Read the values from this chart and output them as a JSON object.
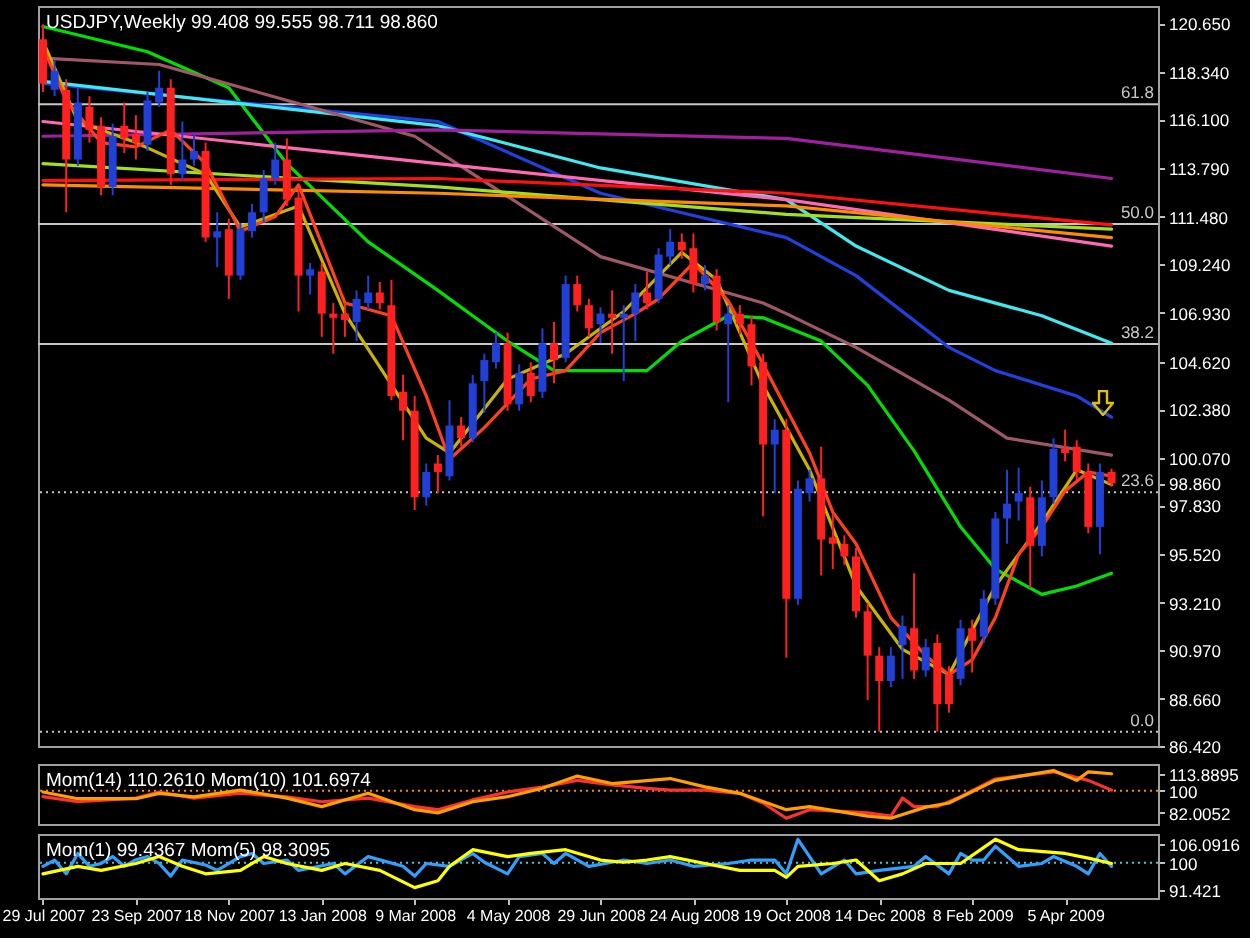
{
  "chart_data": [
    {
      "type": "candlestick",
      "title": "USDJPY,Weekly 99.408 99.555 98.711 98.860",
      "tick_labels": "y",
      "x": [
        "2007-07-29",
        "2007-08-05",
        "2007-08-12",
        "2007-08-19",
        "2007-08-26",
        "2007-09-02",
        "2007-09-09",
        "2007-09-16",
        "2007-09-23",
        "2007-09-30",
        "2007-10-07",
        "2007-10-14",
        "2007-10-21",
        "2007-10-28",
        "2007-11-04",
        "2007-11-11",
        "2007-11-18",
        "2007-11-25",
        "2007-12-02",
        "2007-12-09",
        "2007-12-16",
        "2007-12-23",
        "2007-12-30",
        "2008-01-06",
        "2008-01-13",
        "2008-01-20",
        "2008-01-27",
        "2008-02-03",
        "2008-02-10",
        "2008-02-17",
        "2008-02-24",
        "2008-03-02",
        "2008-03-09",
        "2008-03-16",
        "2008-03-23",
        "2008-03-30",
        "2008-04-06",
        "2008-04-13",
        "2008-04-20",
        "2008-04-27",
        "2008-05-04",
        "2008-05-11",
        "2008-05-18",
        "2008-05-25",
        "2008-06-01",
        "2008-06-08",
        "2008-06-15",
        "2008-06-22",
        "2008-06-29",
        "2008-07-06",
        "2008-07-13",
        "2008-07-20",
        "2008-07-27",
        "2008-08-03",
        "2008-08-10",
        "2008-08-17",
        "2008-08-24",
        "2008-08-31",
        "2008-09-07",
        "2008-09-14",
        "2008-09-21",
        "2008-09-28",
        "2008-10-05",
        "2008-10-12",
        "2008-10-19",
        "2008-10-26",
        "2008-11-02",
        "2008-11-09",
        "2008-11-16",
        "2008-11-23",
        "2008-11-30",
        "2008-12-07",
        "2008-12-14",
        "2008-12-21",
        "2008-12-28",
        "2009-01-04",
        "2009-01-11",
        "2009-01-18",
        "2009-01-25",
        "2009-02-01",
        "2009-02-08",
        "2009-02-15",
        "2009-02-22",
        "2009-03-01",
        "2009-03-08",
        "2009-03-15",
        "2009-03-22",
        "2009-03-29",
        "2009-04-05",
        "2009-04-12",
        "2009-04-19",
        "2009-04-26",
        "2009-05-03"
      ],
      "ohlc": [
        [
          119.9,
          120.6,
          117.4,
          117.8
        ],
        [
          117.5,
          118.9,
          117.2,
          118.4
        ],
        [
          117.5,
          118.0,
          111.7,
          114.2
        ],
        [
          114.2,
          117.6,
          113.9,
          116.9
        ],
        [
          116.7,
          117.2,
          115.0,
          115.6
        ],
        [
          115.8,
          116.2,
          112.5,
          112.9
        ],
        [
          112.9,
          115.9,
          112.5,
          115.3
        ],
        [
          115.8,
          116.9,
          114.5,
          115.2
        ],
        [
          115.4,
          116.3,
          114.2,
          115.0
        ],
        [
          114.9,
          117.4,
          114.6,
          117.0
        ],
        [
          116.9,
          118.4,
          116.7,
          117.6
        ],
        [
          117.6,
          118.0,
          113.0,
          113.5
        ],
        [
          113.5,
          116.0,
          113.2,
          114.2
        ],
        [
          114.2,
          115.4,
          113.9,
          114.6
        ],
        [
          114.6,
          115.0,
          110.3,
          110.5
        ],
        [
          110.5,
          111.7,
          109.1,
          110.8
        ],
        [
          110.9,
          111.4,
          107.6,
          108.7
        ],
        [
          108.7,
          111.2,
          108.5,
          110.9
        ],
        [
          110.8,
          112.1,
          110.5,
          111.7
        ],
        [
          111.7,
          113.7,
          111.2,
          113.3
        ],
        [
          113.3,
          115.0,
          113.0,
          114.2
        ],
        [
          114.2,
          115.2,
          112.0,
          112.3
        ],
        [
          112.4,
          112.8,
          107.0,
          108.7
        ],
        [
          108.7,
          109.3,
          107.8,
          109.0
        ],
        [
          108.9,
          109.3,
          105.8,
          106.9
        ],
        [
          106.9,
          107.4,
          105.0,
          106.7
        ],
        [
          106.9,
          107.4,
          105.8,
          106.6
        ],
        [
          106.5,
          108.0,
          105.6,
          107.6
        ],
        [
          107.4,
          108.7,
          107.1,
          107.9
        ],
        [
          107.9,
          108.4,
          107.1,
          107.4
        ],
        [
          107.3,
          108.5,
          102.8,
          103.0
        ],
        [
          103.2,
          104.0,
          100.9,
          102.3
        ],
        [
          102.3,
          103.0,
          97.6,
          98.2
        ],
        [
          98.2,
          99.8,
          97.8,
          99.4
        ],
        [
          99.8,
          100.2,
          98.4,
          99.4
        ],
        [
          99.2,
          102.8,
          99.0,
          101.6
        ],
        [
          101.6,
          102.0,
          100.6,
          101.0
        ],
        [
          101.0,
          104.0,
          100.8,
          103.6
        ],
        [
          103.7,
          105.0,
          102.2,
          104.7
        ],
        [
          104.6,
          106.0,
          104.3,
          105.5
        ],
        [
          105.5,
          106.0,
          102.3,
          102.6
        ],
        [
          102.6,
          104.5,
          102.3,
          104.1
        ],
        [
          104.1,
          104.6,
          102.7,
          103.0
        ],
        [
          103.2,
          106.2,
          102.9,
          105.5
        ],
        [
          105.5,
          106.5,
          103.6,
          104.7
        ],
        [
          104.8,
          108.7,
          104.6,
          108.3
        ],
        [
          108.3,
          108.7,
          107.0,
          107.3
        ],
        [
          107.3,
          107.6,
          105.8,
          106.2
        ],
        [
          106.4,
          107.2,
          105.5,
          106.9
        ],
        [
          106.9,
          108.0,
          105.0,
          106.7
        ],
        [
          106.7,
          107.3,
          103.7,
          106.9
        ],
        [
          106.9,
          108.3,
          105.6,
          107.9
        ],
        [
          107.9,
          108.9,
          107.1,
          107.4
        ],
        [
          107.6,
          110.0,
          107.4,
          109.7
        ],
        [
          109.6,
          110.9,
          109.2,
          110.3
        ],
        [
          110.3,
          110.7,
          109.5,
          109.9
        ],
        [
          110.0,
          110.7,
          107.9,
          108.3
        ],
        [
          108.3,
          109.2,
          108.0,
          108.7
        ],
        [
          108.7,
          109.0,
          106.1,
          106.5
        ],
        [
          106.4,
          107.3,
          102.7,
          106.9
        ],
        [
          106.9,
          107.3,
          105.9,
          106.4
        ],
        [
          106.4,
          106.8,
          103.5,
          104.4
        ],
        [
          104.6,
          105.0,
          97.3,
          100.7
        ],
        [
          100.7,
          101.9,
          98.4,
          101.4
        ],
        [
          101.4,
          101.9,
          90.6,
          93.4
        ],
        [
          93.4,
          99.0,
          93.1,
          98.6
        ],
        [
          98.4,
          99.5,
          98.0,
          99.1
        ],
        [
          99.1,
          100.6,
          94.5,
          96.2
        ],
        [
          96.3,
          97.4,
          94.8,
          96.0
        ],
        [
          96.0,
          96.4,
          95.0,
          95.4
        ],
        [
          95.4,
          95.8,
          92.5,
          92.8
        ],
        [
          92.8,
          93.2,
          88.6,
          90.7
        ],
        [
          90.7,
          91.1,
          87.1,
          89.5
        ],
        [
          89.5,
          91.1,
          89.2,
          90.7
        ],
        [
          91.2,
          92.6,
          89.6,
          92.1
        ],
        [
          92.0,
          94.6,
          89.6,
          90.0
        ],
        [
          90.0,
          91.5,
          89.7,
          91.1
        ],
        [
          91.3,
          91.7,
          87.1,
          88.4
        ],
        [
          89.8,
          90.2,
          88.0,
          88.4
        ],
        [
          89.6,
          92.4,
          89.3,
          92.0
        ],
        [
          92.0,
          92.4,
          89.9,
          91.4
        ],
        [
          91.6,
          93.8,
          91.3,
          93.4
        ],
        [
          93.4,
          97.5,
          93.1,
          97.2
        ],
        [
          97.2,
          99.5,
          96.0,
          97.9
        ],
        [
          98.0,
          99.6,
          97.1,
          98.4
        ],
        [
          98.2,
          98.7,
          93.9,
          95.9
        ],
        [
          95.9,
          99.0,
          95.4,
          98.2
        ],
        [
          98.2,
          101.0,
          97.9,
          100.5
        ],
        [
          100.5,
          101.4,
          99.9,
          100.3
        ],
        [
          100.6,
          100.9,
          99.0,
          99.4
        ],
        [
          99.4,
          99.8,
          96.5,
          96.8
        ],
        [
          96.8,
          99.8,
          95.5,
          99.4
        ],
        [
          99.408,
          99.555,
          98.711,
          98.86
        ]
      ],
      "colors": [
        "#ff2020",
        "#2040d8",
        "#ff2020",
        "#2040d8",
        "#ff2020",
        "#ff2020",
        "#2040d8",
        "#ff2020",
        "#ff2020",
        "#2040d8",
        "#2040d8",
        "#ff2020",
        "#2040d8",
        "#2040d8",
        "#ff2020",
        "#2040d8",
        "#ff2020",
        "#2040d8",
        "#2040d8",
        "#2040d8",
        "#2040d8",
        "#ff2020",
        "#ff2020",
        "#2040d8",
        "#ff2020",
        "#ff2020",
        "#ff2020",
        "#2040d8",
        "#2040d8",
        "#ff2020",
        "#ff2020",
        "#ff2020",
        "#ff2020",
        "#2040d8",
        "#ff2020",
        "#2040d8",
        "#ff2020",
        "#2040d8",
        "#2040d8",
        "#2040d8",
        "#ff2020",
        "#2040d8",
        "#ff2020",
        "#2040d8",
        "#ff2020",
        "#2040d8",
        "#ff2020",
        "#ff2020",
        "#2040d8",
        "#ff2020",
        "#2040d8",
        "#2040d8",
        "#ff2020",
        "#2040d8",
        "#2040d8",
        "#ff2020",
        "#ff2020",
        "#2040d8",
        "#ff2020",
        "#2040d8",
        "#ff2020",
        "#ff2020",
        "#ff2020",
        "#2040d8",
        "#ff2020",
        "#2040d8",
        "#2040d8",
        "#ff2020",
        "#ff2020",
        "#ff2020",
        "#ff2020",
        "#ff2020",
        "#ff2020",
        "#2040d8",
        "#2040d8",
        "#ff2020",
        "#2040d8",
        "#ff2020",
        "#ff2020",
        "#2040d8",
        "#ff2020",
        "#2040d8",
        "#2040d8",
        "#2040d8",
        "#2040d8",
        "#ff2020",
        "#2040d8",
        "#2040d8",
        "#ff2020",
        "#ff2020",
        "#ff2020",
        "#2040d8",
        "#ff2020"
      ],
      "series": [
        {
          "type": "line",
          "color": "#00e000",
          "x": [
            "2007-07-29",
            "2007-09-30",
            "2007-11-18",
            "2007-12-23",
            "2008-02-10",
            "2008-03-23",
            "2008-04-13",
            "2008-05-04",
            "2008-06-01",
            "2008-07-27",
            "2008-08-17",
            "2008-09-14",
            "2008-10-05",
            "2008-11-09",
            "2008-12-07",
            "2009-01-04",
            "2009-02-01",
            "2009-02-22",
            "2009-03-22",
            "2009-04-12",
            "2009-05-03"
          ],
          "values": [
            120.5,
            119.3,
            117.6,
            114.0,
            110.3,
            108.0,
            106.8,
            105.6,
            104.2,
            104.2,
            105.6,
            106.8,
            106.7,
            105.6,
            103.5,
            100.4,
            96.8,
            94.8,
            93.6,
            94.0,
            94.6
          ]
        },
        {
          "type": "line",
          "color": "#2040e0",
          "x": [
            "2007-07-29",
            "2008-03-23",
            "2008-06-29",
            "2008-10-19",
            "2008-11-30",
            "2009-01-25",
            "2009-02-22",
            "2009-04-12",
            "2009-05-03"
          ],
          "values": [
            117.8,
            116.0,
            112.6,
            110.5,
            108.7,
            105.3,
            104.2,
            103.0,
            102.0
          ]
        },
        {
          "type": "line",
          "color": "#40e8f0",
          "x": [
            "2007-07-29",
            "2008-03-23",
            "2008-06-29",
            "2008-10-19",
            "2008-11-30",
            "2009-01-25",
            "2009-03-22",
            "2009-05-03"
          ],
          "values": [
            117.9,
            115.8,
            113.8,
            112.3,
            110.1,
            108.0,
            106.8,
            105.5
          ]
        },
        {
          "type": "line",
          "color": "#a05868",
          "x": [
            "2007-07-29",
            "2007-10-07",
            "2008-03-09",
            "2008-06-29",
            "2008-10-05",
            "2008-10-19",
            "2008-11-30",
            "2009-01-25",
            "2009-03-01",
            "2009-05-03"
          ],
          "values": [
            119.0,
            118.7,
            115.3,
            109.6,
            107.4,
            106.9,
            105.3,
            102.8,
            101.0,
            100.2
          ]
        },
        {
          "type": "line",
          "color": "#a020a0",
          "x": [
            "2007-07-29",
            "2008-03-23",
            "2008-10-19",
            "2009-05-03"
          ],
          "values": [
            115.3,
            115.6,
            115.2,
            113.3
          ]
        },
        {
          "type": "line",
          "color": "#ff69b4",
          "x": [
            "2007-07-29",
            "2008-03-23",
            "2008-10-19",
            "2009-05-03"
          ],
          "values": [
            116.0,
            114.0,
            112.3,
            110.1
          ]
        },
        {
          "type": "line",
          "color": "#a0e020",
          "x": [
            "2007-07-29",
            "2008-03-23",
            "2008-10-19",
            "2009-05-03"
          ],
          "values": [
            114.0,
            112.9,
            111.6,
            110.9
          ]
        },
        {
          "type": "line",
          "color": "#ff8c00",
          "x": [
            "2007-07-29",
            "2008-03-23",
            "2008-10-19",
            "2009-05-03"
          ],
          "values": [
            113.0,
            112.6,
            112.0,
            110.5
          ]
        },
        {
          "type": "line",
          "color": "#ff1010",
          "x": [
            "2007-07-29",
            "2008-03-23",
            "2008-10-19",
            "2009-05-03"
          ],
          "values": [
            113.2,
            113.3,
            112.6,
            111.1
          ]
        },
        {
          "type": "line",
          "color": "#c8b400",
          "x": [
            "2007-07-29",
            "2007-08-19",
            "2007-09-23",
            "2007-11-04",
            "2007-11-25",
            "2007-12-30",
            "2008-01-27",
            "2008-03-16",
            "2008-03-30",
            "2008-05-04",
            "2008-06-08",
            "2008-07-13",
            "2008-08-17",
            "2008-09-07",
            "2008-10-05",
            "2008-11-02",
            "2008-11-30",
            "2008-12-28",
            "2009-01-25",
            "2009-02-22",
            "2009-03-22",
            "2009-04-12",
            "2009-05-03"
          ],
          "values": [
            119.8,
            116.0,
            115.0,
            113.5,
            111.0,
            112.0,
            106.9,
            101.0,
            100.3,
            103.8,
            105.0,
            107.0,
            109.8,
            108.5,
            103.5,
            99.5,
            94.0,
            91.0,
            89.8,
            94.0,
            97.0,
            99.5,
            98.8
          ]
        },
        {
          "type": "line",
          "color": "#ff4020",
          "x": [
            "2007-07-29",
            "2007-08-12",
            "2007-09-02",
            "2007-09-23",
            "2007-10-14",
            "2007-11-04",
            "2007-11-25",
            "2007-12-16",
            "2007-12-30",
            "2008-01-27",
            "2008-02-24",
            "2008-03-16",
            "2008-03-30",
            "2008-04-20",
            "2008-05-18",
            "2008-06-08",
            "2008-06-29",
            "2008-07-20",
            "2008-08-03",
            "2008-08-24",
            "2008-09-14",
            "2008-10-05",
            "2008-11-02",
            "2008-11-16",
            "2008-11-30",
            "2008-12-21",
            "2009-01-11",
            "2009-01-25",
            "2009-02-08",
            "2009-02-22",
            "2009-03-08",
            "2009-03-22",
            "2009-04-05",
            "2009-04-19",
            "2009-05-03"
          ],
          "values": [
            119.5,
            117.0,
            115.0,
            114.8,
            115.6,
            114.0,
            110.8,
            111.5,
            113.0,
            107.4,
            106.8,
            103.0,
            100.0,
            101.5,
            103.8,
            104.2,
            106.0,
            106.9,
            107.6,
            109.3,
            107.5,
            104.5,
            100.3,
            97.5,
            96.0,
            92.5,
            90.7,
            89.8,
            90.5,
            92.5,
            95.5,
            96.8,
            98.5,
            99.4,
            99.2
          ]
        }
      ],
      "ref_lines": [
        {
          "axis": "y",
          "value": 116.82,
          "color": "#c8c8c8"
        },
        {
          "axis": "y",
          "value": 111.14,
          "color": "#c8c8c8"
        },
        {
          "axis": "y",
          "value": 105.46,
          "color": "#c8c8c8"
        },
        {
          "axis": "y",
          "value": 98.44,
          "color": "#c8c8c8",
          "line_style": "dotted"
        },
        {
          "axis": "y",
          "value": 87.09,
          "color": "#c8c8c8",
          "line_style": "dotted"
        }
      ],
      "annotations": [
        {
          "text": "61.8",
          "x": "2009-05-31",
          "y": 116.82
        },
        {
          "text": "50.0",
          "x": "2009-05-31",
          "y": 111.14
        },
        {
          "text": "38.2",
          "x": "2009-05-31",
          "y": 105.46
        },
        {
          "text": "23.6",
          "x": "2009-05-31",
          "y": 98.44
        },
        {
          "text": "0.0",
          "x": "2009-05-31",
          "y": 87.09
        }
      ],
      "xlim": [
        "2007-07-26",
        "2009-05-31"
      ],
      "ylim": [
        86.42,
        121.47
      ],
      "yticks": [
        {
          "value": 120.65,
          "label": "120.650"
        },
        {
          "value": 118.34,
          "label": "118.340"
        },
        {
          "value": 116.1,
          "label": "116.100"
        },
        {
          "value": 113.79,
          "label": "113.790"
        },
        {
          "value": 111.48,
          "label": "111.480"
        },
        {
          "value": 109.24,
          "label": "109.240"
        },
        {
          "value": 106.93,
          "label": "106.930"
        },
        {
          "value": 104.62,
          "label": "104.620"
        },
        {
          "value": 102.38,
          "label": "102.380"
        },
        {
          "value": 100.07,
          "label": "100.070"
        },
        {
          "value": 98.86,
          "label": "98.860"
        },
        {
          "value": 97.83,
          "label": "97.830"
        },
        {
          "value": 95.52,
          "label": "95.520"
        },
        {
          "value": 93.21,
          "label": "93.210"
        },
        {
          "value": 90.97,
          "label": "90.970"
        },
        {
          "value": 88.66,
          "label": "88.660"
        },
        {
          "value": 86.42,
          "label": "86.420"
        }
      ]
    },
    {
      "type": "line",
      "title": "Mom(14) 110.2610 Mom(10) 101.6974",
      "tick_labels": "y",
      "series": [
        {
          "color": "#ff3030",
          "x": [
            "2007-07-29",
            "2007-08-19",
            "2007-09-23",
            "2007-10-07",
            "2007-10-28",
            "2007-11-25",
            "2007-12-23",
            "2008-01-13",
            "2008-02-10",
            "2008-03-09",
            "2008-03-23",
            "2008-04-13",
            "2008-05-04",
            "2008-05-25",
            "2008-06-15",
            "2008-07-06",
            "2008-07-27",
            "2008-08-10",
            "2008-08-31",
            "2008-09-21",
            "2008-10-05",
            "2008-10-19",
            "2008-11-02",
            "2008-11-16",
            "2008-12-07",
            "2008-12-21",
            "2008-12-28",
            "2009-01-04",
            "2009-01-18",
            "2009-02-01",
            "2009-02-22",
            "2009-03-29",
            "2009-04-19",
            "2009-05-03"
          ],
          "values": [
            95.2,
            91,
            94,
            99,
            94,
            98,
            95,
            91,
            94,
            87,
            84.5,
            92.5,
            99,
            103,
            108.5,
            104.8,
            102,
            100.5,
            100.5,
            97.9,
            90,
            77.5,
            84.5,
            83.5,
            81.9,
            79.2,
            94,
            87,
            87,
            95.2,
            109.6,
            115.5,
            108.5,
            100.5
          ]
        },
        {
          "color": "#ffa000",
          "x": [
            "2007-07-29",
            "2007-08-19",
            "2007-09-23",
            "2007-10-07",
            "2007-10-28",
            "2007-11-25",
            "2007-12-23",
            "2008-01-13",
            "2008-02-10",
            "2008-03-09",
            "2008-03-23",
            "2008-04-13",
            "2008-05-04",
            "2008-05-25",
            "2008-06-15",
            "2008-07-06",
            "2008-08-10",
            "2008-08-31",
            "2008-09-21",
            "2008-10-19",
            "2008-11-02",
            "2008-12-07",
            "2008-12-21",
            "2009-01-11",
            "2009-01-25",
            "2009-02-22",
            "2009-03-29",
            "2009-04-12",
            "2009-04-19",
            "2009-05-03"
          ],
          "values": [
            99,
            93.5,
            93.5,
            97.9,
            95,
            100.5,
            94,
            87,
            97.9,
            84.5,
            81.9,
            91,
            95.2,
            102,
            112,
            105.9,
            110,
            103.2,
            97.9,
            84.5,
            87,
            79.2,
            77.5,
            86.6,
            90,
            108.5,
            116.5,
            108.5,
            115.5,
            113.9
          ]
        }
      ],
      "ref_lines": [
        {
          "axis": "y",
          "value": 100,
          "color": "#ff8c00",
          "line_style": "dotted"
        }
      ],
      "xlim": [
        "2007-07-26",
        "2009-05-31"
      ],
      "ylim": [
        72.8,
        121.9
      ],
      "yticks": [
        82.0052,
        100,
        113.8895
      ]
    },
    {
      "type": "line",
      "title": "Mom(1) 99.4367 Mom(5) 98.3095",
      "series": [
        {
          "color": "#30a0ff",
          "x": [
            "2007-07-29",
            "2007-08-05",
            "2007-08-12",
            "2007-08-19",
            "2007-08-26",
            "2007-09-02",
            "2007-09-09",
            "2007-09-16",
            "2007-09-23",
            "2007-09-30",
            "2007-10-07",
            "2007-10-14",
            "2007-10-21",
            "2007-11-04",
            "2007-11-11",
            "2007-11-25",
            "2007-12-02",
            "2007-12-09",
            "2007-12-23",
            "2007-12-30",
            "2008-01-20",
            "2008-01-27",
            "2008-02-10",
            "2008-03-02",
            "2008-03-09",
            "2008-03-16",
            "2008-03-30",
            "2008-04-13",
            "2008-04-20",
            "2008-05-04",
            "2008-05-11",
            "2008-05-25",
            "2008-06-01",
            "2008-06-08",
            "2008-06-22",
            "2008-07-06",
            "2008-07-13",
            "2008-07-27",
            "2008-08-10",
            "2008-08-24",
            "2008-09-14",
            "2008-09-28",
            "2008-10-12",
            "2008-10-19",
            "2008-10-26",
            "2008-11-09",
            "2008-11-23",
            "2008-11-30",
            "2008-12-14",
            "2009-01-04",
            "2009-01-11",
            "2009-01-25",
            "2009-02-01",
            "2009-02-08",
            "2009-02-15",
            "2009-02-22",
            "2009-03-08",
            "2009-03-22",
            "2009-03-29",
            "2009-04-12",
            "2009-04-19",
            "2009-04-26",
            "2009-05-03"
          ],
          "values": [
            98.9,
            100.9,
            96.5,
            103,
            98.9,
            99.8,
            102,
            98.9,
            101,
            102,
            99.8,
            95.8,
            100.9,
            99.3,
            97.6,
            102,
            103,
            99.8,
            100.9,
            97.6,
            99.8,
            96.5,
            102,
            98.9,
            95.8,
            99.8,
            98.9,
            103,
            100.2,
            96.5,
            102,
            103,
            99.8,
            103,
            98.9,
            100.2,
            100.9,
            99.8,
            100.9,
            98.9,
            99.8,
            100.9,
            100.9,
            96.5,
            107.5,
            96.5,
            100.9,
            96.5,
            97.6,
            98.9,
            102,
            96.5,
            103,
            100.9,
            100.9,
            105.3,
            98.9,
            99.8,
            102,
            98.9,
            96.5,
            103,
            98.9
          ]
        },
        {
          "color": "#ffff00",
          "x": [
            "2007-07-29",
            "2007-08-19",
            "2007-09-02",
            "2007-09-23",
            "2007-10-07",
            "2007-10-21",
            "2007-11-04",
            "2007-11-25",
            "2007-12-09",
            "2007-12-23",
            "2008-01-13",
            "2008-01-27",
            "2008-02-17",
            "2008-03-09",
            "2008-03-23",
            "2008-03-30",
            "2008-04-13",
            "2008-05-04",
            "2008-05-18",
            "2008-06-08",
            "2008-06-29",
            "2008-07-13",
            "2008-07-27",
            "2008-08-10",
            "2008-08-31",
            "2008-09-21",
            "2008-10-12",
            "2008-10-19",
            "2008-10-26",
            "2008-11-16",
            "2008-11-30",
            "2008-12-14",
            "2008-12-28",
            "2009-01-11",
            "2009-02-01",
            "2009-02-22",
            "2009-03-08",
            "2009-04-05",
            "2009-04-19",
            "2009-05-03"
          ],
          "values": [
            96.5,
            98.9,
            97.6,
            99.8,
            102,
            98.9,
            96.5,
            97.6,
            102,
            99.8,
            97.6,
            99.8,
            97.6,
            92.1,
            94.3,
            98.9,
            104.2,
            102,
            103,
            104.2,
            100.9,
            100.2,
            100.9,
            102,
            99.8,
            97.6,
            97.6,
            95.4,
            98.9,
            99.8,
            100.9,
            94.3,
            96.5,
            99.8,
            99.8,
            107.5,
            104.2,
            103,
            101.5,
            99.8
          ]
        }
      ],
      "ref_lines": [
        {
          "axis": "y",
          "value": 100,
          "color": "#40c8e0",
          "line_style": "dotted"
        }
      ],
      "xlim": [
        "2007-07-26",
        "2009-05-31"
      ],
      "ylim": [
        88.8,
        109.2
      ],
      "yticks": [
        91.421,
        100,
        106.0916
      ],
      "xticks": [
        {
          "value": "2007-07-29",
          "label": "29 Jul 2007"
        },
        {
          "value": "2007-09-23",
          "label": "23 Sep 2007"
        },
        {
          "value": "2007-11-18",
          "label": "18 Nov 2007"
        },
        {
          "value": "2008-01-13",
          "label": "13 Jan 2008"
        },
        {
          "value": "2008-03-09",
          "label": "9 Mar 2008"
        },
        {
          "value": "2008-05-04",
          "label": "4 May 2008"
        },
        {
          "value": "2008-06-29",
          "label": "29 Jun 2008"
        },
        {
          "value": "2008-08-24",
          "label": "24 Aug 2008"
        },
        {
          "value": "2008-10-19",
          "label": "19 Oct 2008"
        },
        {
          "value": "2008-12-14",
          "label": "14 Dec 2008"
        },
        {
          "value": "2009-02-08",
          "label": "8 Feb 2009"
        },
        {
          "value": "2009-04-05",
          "label": "5 Apr 2009"
        }
      ]
    }
  ]
}
